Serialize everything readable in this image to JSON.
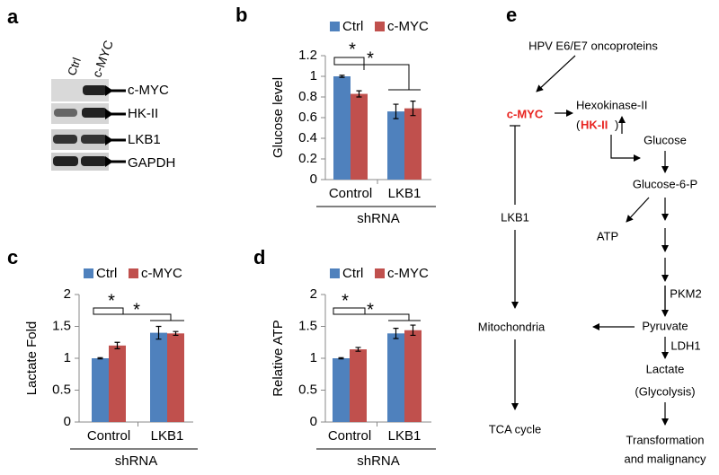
{
  "blot": {
    "panel_label": "a",
    "lanes": [
      "Ctrl",
      "c-MYC"
    ],
    "bands": [
      "c-MYC",
      "HK-II",
      "LKB1",
      "GAPDH"
    ]
  },
  "chart_data": [
    {
      "type": "bar",
      "panel_label": "b",
      "ylabel": "Glucose level",
      "xlabel": "shRNA",
      "categories": [
        "Control",
        "LKB1"
      ],
      "series": [
        {
          "name": "Ctrl",
          "color": "#4f81bd",
          "values": [
            1.0,
            0.66
          ],
          "errors": [
            0.01,
            0.07
          ]
        },
        {
          "name": "c-MYC",
          "color": "#c0504d",
          "values": [
            0.83,
            0.69
          ],
          "errors": [
            0.03,
            0.07
          ]
        }
      ],
      "ylim": [
        0,
        1.2
      ],
      "yticks": [
        0,
        0.2,
        0.4,
        0.6,
        0.8,
        1,
        1.2
      ],
      "annotations": [
        "*",
        "*"
      ]
    },
    {
      "type": "bar",
      "panel_label": "c",
      "ylabel": "Lactate Fold",
      "xlabel": "shRNA",
      "categories": [
        "Control",
        "LKB1"
      ],
      "series": [
        {
          "name": "Ctrl",
          "color": "#4f81bd",
          "values": [
            1.0,
            1.4
          ],
          "errors": [
            0.01,
            0.1
          ]
        },
        {
          "name": "c-MYC",
          "color": "#c0504d",
          "values": [
            1.2,
            1.39
          ],
          "errors": [
            0.05,
            0.03
          ]
        }
      ],
      "ylim": [
        0,
        2
      ],
      "yticks": [
        0,
        0.5,
        1,
        1.5,
        2
      ],
      "annotations": [
        "*",
        "*"
      ]
    },
    {
      "type": "bar",
      "panel_label": "d",
      "ylabel": "Relative ATP",
      "xlabel": "shRNA",
      "categories": [
        "Control",
        "LKB1"
      ],
      "series": [
        {
          "name": "Ctrl",
          "color": "#4f81bd",
          "values": [
            1.0,
            1.39
          ],
          "errors": [
            0.01,
            0.08
          ]
        },
        {
          "name": "c-MYC",
          "color": "#c0504d",
          "values": [
            1.14,
            1.44
          ],
          "errors": [
            0.03,
            0.08
          ]
        }
      ],
      "ylim": [
        0,
        2
      ],
      "yticks": [
        0,
        0.5,
        1,
        1.5,
        2
      ],
      "annotations": [
        "*",
        "*"
      ]
    }
  ],
  "diagram": {
    "panel_label": "e",
    "nodes": {
      "hpv": "HPV E6/E7 oncoproteins",
      "cmyc": "c-MYC",
      "hk": "Hexokinase-II",
      "hk_open": "(",
      "hk_short": "HK-II",
      "hk_close": ")",
      "glucose": "Glucose",
      "g6p": "Glucose-6-P",
      "atp": "ATP",
      "pkm2": "PKM2",
      "pyruvate": "Pyruvate",
      "ldh1": "LDH1",
      "lactate": "Lactate",
      "glycolysis": "(Glycolysis)",
      "transformation": "Transformation",
      "malignancy": "and malignancy",
      "lkb1": "LKB1",
      "mito": "Mitochondria",
      "tca": "TCA cycle"
    }
  }
}
